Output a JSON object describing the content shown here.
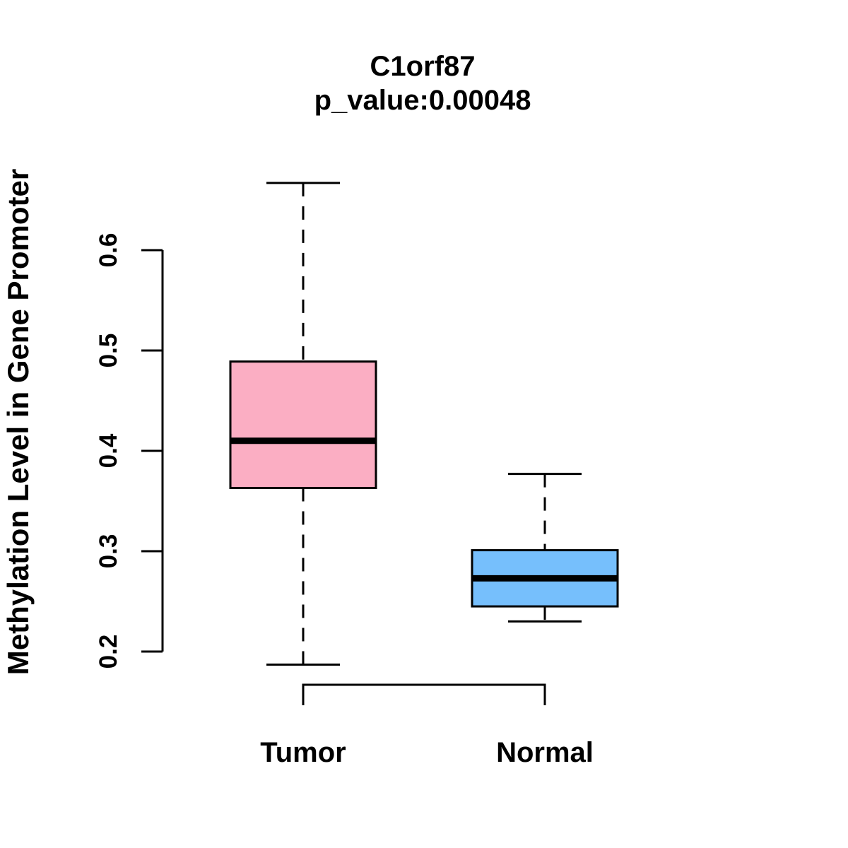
{
  "figure": {
    "background": "#ffffff",
    "foreground": "#000000"
  },
  "chart_data": {
    "type": "boxplot",
    "title": "C1orf87",
    "subtitle": "p_value:0.00048",
    "ylabel": "Methylation Level in Gene Promoter",
    "xlabel": "",
    "categories": [
      "Tumor",
      "Normal"
    ],
    "y_axis_range": [
      0.2,
      0.6
    ],
    "y_ticks": [
      0.2,
      0.3,
      0.4,
      0.5,
      0.6
    ],
    "y_tick_labels": [
      "0.2",
      "0.3",
      "0.4",
      "0.5",
      "0.6"
    ],
    "grid": false,
    "legend": "none",
    "box_stroke": "#000000",
    "whisker_style": "dashed",
    "series": [
      {
        "name": "Tumor",
        "fill": "#FBAEC3",
        "lower_whisker": 0.187,
        "q1": 0.363,
        "median": 0.41,
        "q3": 0.489,
        "upper_whisker": 0.667
      },
      {
        "name": "Normal",
        "fill": "#76BFFC",
        "lower_whisker": 0.23,
        "q1": 0.245,
        "median": 0.273,
        "q3": 0.301,
        "upper_whisker": 0.377
      }
    ]
  }
}
